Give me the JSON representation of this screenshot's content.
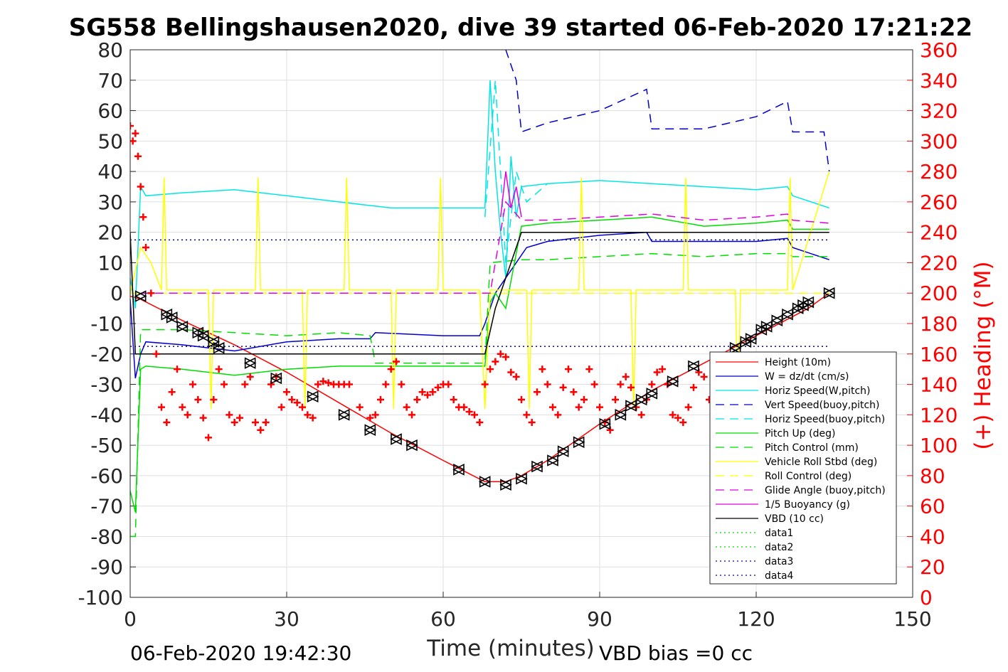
{
  "chart_data": {
    "type": "line",
    "title": "SG558 Bellingshausen2020, dive 39 started 06-Feb-2020 17:21:22",
    "xlabel": "Time (minutes)",
    "ylabel_right": "(+) Heading (°M)",
    "xlim": [
      0,
      150
    ],
    "ylim": [
      -100,
      80
    ],
    "ylim_right": [
      0,
      360
    ],
    "xticks": [
      "0",
      "30",
      "60",
      "90",
      "120",
      "150"
    ],
    "yticks": [
      "80",
      "70",
      "60",
      "50",
      "40",
      "30",
      "20",
      "10",
      "0",
      "-10",
      "-20",
      "-30",
      "-40",
      "-50",
      "-60",
      "-70",
      "-80",
      "-90",
      "-100"
    ],
    "yticks_right": [
      "360",
      "340",
      "320",
      "300",
      "280",
      "260",
      "240",
      "220",
      "200",
      "180",
      "160",
      "140",
      "120",
      "100",
      "80",
      "60",
      "40",
      "20",
      "0"
    ],
    "grid": true,
    "legend_position": "lower-right",
    "footer_left": "06-Feb-2020 19:42:30",
    "footer_right": "VBD bias =0 cc",
    "series": [
      {
        "name": "Height (10m)",
        "color": "#ff0000",
        "style": "solid",
        "x": [
          0,
          2,
          10,
          20,
          30,
          40,
          50,
          60,
          68,
          72,
          75,
          80,
          90,
          100,
          110,
          120,
          130,
          134
        ],
        "y": [
          -1,
          -2,
          -9,
          -17,
          -26,
          -36,
          -46,
          -55,
          -62,
          -62,
          -60,
          -55,
          -43,
          -32,
          -23,
          -14,
          -5,
          0
        ]
      },
      {
        "name": "W = dz/dt (cm/s)",
        "color": "#0000cc",
        "style": "solid",
        "x": [
          0,
          1,
          2,
          3,
          10,
          20,
          30,
          40,
          46,
          47,
          60,
          67,
          68,
          70,
          72,
          74,
          76,
          80,
          90,
          99,
          100,
          110,
          120,
          126,
          127,
          134
        ],
        "y": [
          -2,
          -28,
          -20,
          -16,
          -17,
          -19,
          -16,
          -15,
          -15,
          -13,
          -14,
          -14,
          -10,
          0,
          5,
          10,
          15,
          17,
          19,
          20,
          17,
          17,
          17,
          18,
          15,
          11
        ]
      },
      {
        "name": "Horiz Speed(W,pitch)",
        "color": "#00e5e5",
        "style": "solid",
        "x": [
          0,
          1,
          2,
          3,
          10,
          20,
          30,
          40,
          50,
          60,
          68,
          69,
          70,
          71,
          72,
          73,
          74,
          75,
          80,
          90,
          100,
          110,
          120,
          126,
          127,
          134
        ],
        "y": [
          5,
          -5,
          35,
          32,
          33,
          34,
          32,
          30,
          28,
          28,
          28,
          70,
          40,
          20,
          5,
          45,
          25,
          35,
          36,
          37,
          36,
          35,
          34,
          35,
          32,
          28
        ]
      },
      {
        "name": "Vert Speed(buoy,pitch)",
        "color": "#0000cc",
        "style": "dashed",
        "x": [
          72,
          73,
          74,
          75,
          80,
          90,
          99,
          100,
          110,
          120,
          126,
          127,
          133,
          134
        ],
        "y": [
          80,
          75,
          70,
          53,
          56,
          60,
          67,
          54,
          54,
          58,
          63,
          53,
          53,
          40
        ]
      },
      {
        "name": "Horiz Speed(buoy,pitch)",
        "color": "#00e5e5",
        "style": "dashed",
        "x": [
          68,
          70,
          72,
          74,
          76,
          80
        ],
        "y": [
          25,
          70,
          10,
          40,
          30,
          36
        ]
      },
      {
        "name": "Pitch Up (deg)",
        "color": "#00dd00",
        "style": "solid",
        "x": [
          0,
          1,
          2,
          3,
          10,
          20,
          30,
          40,
          50,
          60,
          68,
          69,
          70,
          72,
          75,
          80,
          90,
          100,
          110,
          120,
          126,
          127,
          134
        ],
        "y": [
          -65,
          -72,
          -25,
          -24,
          -25,
          -27,
          -25,
          -24,
          -24,
          -24,
          -24,
          -3,
          0,
          -5,
          22,
          23,
          24,
          25,
          22,
          23,
          24,
          21,
          21
        ]
      },
      {
        "name": "Pitch Control (mm)",
        "color": "#00dd00",
        "style": "dashed",
        "x": [
          0,
          1,
          2,
          3,
          10,
          20,
          30,
          40,
          46,
          47,
          60,
          68,
          69,
          75,
          80,
          90,
          100,
          110,
          120,
          126,
          127,
          134
        ],
        "y": [
          -80,
          -80,
          -12,
          -12,
          -12,
          -13,
          -14,
          -13,
          -14,
          -23,
          -23,
          -23,
          10,
          11,
          11,
          12,
          13,
          12,
          13,
          13,
          12,
          12
        ]
      },
      {
        "name": "Vehicle Roll Stbd (deg)",
        "color": "#ffff00",
        "style": "solid",
        "x": [
          0,
          2,
          4,
          6,
          6.5,
          7,
          15,
          15.5,
          16,
          24,
          24.5,
          25,
          33,
          33.5,
          34,
          41,
          41.5,
          42,
          50,
          50.5,
          51,
          59,
          59.5,
          60,
          67,
          68,
          69,
          76,
          76.5,
          77,
          86,
          86.5,
          87,
          96,
          96.5,
          97,
          106,
          106.5,
          107,
          116,
          116.5,
          117,
          126,
          126.5,
          127,
          134
        ],
        "y": [
          0,
          15,
          10,
          1,
          38,
          1,
          1,
          -38,
          1,
          1,
          38,
          1,
          1,
          -38,
          1,
          1,
          38,
          1,
          1,
          -38,
          1,
          1,
          38,
          1,
          1,
          -38,
          1,
          1,
          -38,
          1,
          1,
          38,
          1,
          1,
          -38,
          1,
          1,
          38,
          1,
          1,
          -38,
          1,
          1,
          38,
          1,
          40
        ]
      },
      {
        "name": "Roll Control (deg)",
        "color": "#ffff00",
        "style": "dashed",
        "x": [
          0,
          134
        ],
        "y": [
          0,
          0
        ]
      },
      {
        "name": "Glide Angle (buoy,pitch)",
        "color": "#e000e0",
        "style": "dashed",
        "x": [
          2,
          68,
          69,
          72,
          75,
          80,
          90,
          100,
          110,
          120,
          126,
          127,
          134
        ],
        "y": [
          0,
          0,
          0,
          30,
          24,
          24,
          25,
          26,
          24,
          25,
          26,
          24,
          23
        ]
      },
      {
        "name": "1/5 Buoyancy (g)",
        "color": "#e000e0",
        "style": "solid",
        "x": [
          71,
          72,
          73,
          74,
          75
        ],
        "y": [
          25,
          40,
          28,
          35,
          25
        ]
      },
      {
        "name": "VBD (10 cc)",
        "color": "#000000",
        "style": "solid",
        "x": [
          0,
          1,
          2,
          68,
          70,
          72,
          75,
          134
        ],
        "y": [
          20,
          -20,
          -20,
          -20,
          -5,
          5,
          20,
          20
        ]
      },
      {
        "name": "data1",
        "color": "#00dd00",
        "style": "dotted",
        "x": [],
        "y": []
      },
      {
        "name": "data2",
        "color": "#00dd00",
        "style": "dotted",
        "x": [],
        "y": []
      },
      {
        "name": "data3",
        "color": "#000099",
        "style": "dotted",
        "x": [
          0,
          134
        ],
        "y": [
          17.5,
          17.5
        ]
      },
      {
        "name": "data4",
        "color": "#000099",
        "style": "dotted",
        "x": [
          0,
          134
        ],
        "y": [
          -17.5,
          -17.5
        ]
      }
    ],
    "heading": {
      "name": "Heading",
      "color": "#ff0000",
      "marker": "+",
      "axis": "right",
      "x": [
        0,
        0.5,
        1,
        1.5,
        2,
        2.5,
        3,
        4,
        5,
        6,
        7,
        8,
        9,
        10,
        11,
        12,
        13,
        14,
        15,
        16,
        17,
        18,
        19,
        20,
        21,
        22,
        23,
        24,
        25,
        26,
        27,
        28,
        29,
        30,
        31,
        32,
        33,
        34,
        35,
        36,
        37,
        38,
        39,
        40,
        41,
        42,
        44,
        46,
        47,
        48,
        49,
        50,
        51,
        52,
        53,
        54,
        55,
        56,
        57,
        58,
        59,
        60,
        61,
        62,
        63,
        64,
        65,
        66,
        67,
        68,
        69,
        70,
        71,
        72,
        73,
        74,
        75,
        76,
        77,
        78,
        79,
        80,
        81,
        82,
        83,
        84,
        85,
        86,
        87,
        88,
        89,
        90,
        91,
        92,
        93,
        94,
        95,
        96,
        97,
        98,
        99,
        100,
        101,
        102,
        103,
        104,
        105,
        106,
        107,
        108,
        109,
        110,
        111
      ],
      "y": [
        310,
        300,
        305,
        290,
        270,
        250,
        230,
        200,
        160,
        125,
        115,
        135,
        150,
        125,
        120,
        140,
        130,
        118,
        105,
        130,
        150,
        140,
        120,
        115,
        118,
        140,
        145,
        115,
        110,
        115,
        140,
        145,
        125,
        135,
        130,
        128,
        125,
        120,
        118,
        140,
        142,
        141,
        140,
        140,
        140,
        140,
        125,
        118,
        120,
        130,
        140,
        150,
        155,
        140,
        125,
        120,
        130,
        135,
        133,
        135,
        138,
        140,
        140,
        130,
        125,
        125,
        122,
        120,
        115,
        140,
        150,
        155,
        160,
        158,
        148,
        145,
        130,
        120,
        115,
        135,
        150,
        140,
        125,
        120,
        138,
        150,
        135,
        125,
        130,
        150,
        140,
        125,
        115,
        110,
        130,
        140,
        145,
        138,
        125,
        120,
        130,
        140,
        148,
        150,
        140,
        120,
        118,
        115,
        125,
        138,
        148,
        145,
        130
      ]
    },
    "markers": {
      "name": "Height markers",
      "color": "#000000",
      "marker": "triangles",
      "axis": "left",
      "x": [
        2,
        7,
        8,
        10,
        13,
        14,
        16,
        17,
        23,
        28,
        35,
        41,
        46,
        51,
        54,
        63,
        68,
        72,
        75,
        78,
        81,
        83,
        86,
        91,
        94,
        96,
        98,
        100,
        104,
        108,
        116,
        118,
        119,
        121,
        122,
        124,
        126,
        128,
        129,
        130,
        134
      ],
      "y": [
        -1,
        -7,
        -8,
        -11,
        -13,
        -14,
        -16,
        -18,
        -23,
        -28,
        -34,
        -40,
        -45,
        -48,
        -50,
        -58,
        -62,
        -63,
        -61,
        -57,
        -55,
        -52,
        -49,
        -43,
        -40,
        -37,
        -35,
        -33,
        -29,
        -24,
        -18,
        -16,
        -15,
        -12,
        -11,
        -9,
        -7,
        -5,
        -4,
        -3,
        0
      ]
    }
  }
}
